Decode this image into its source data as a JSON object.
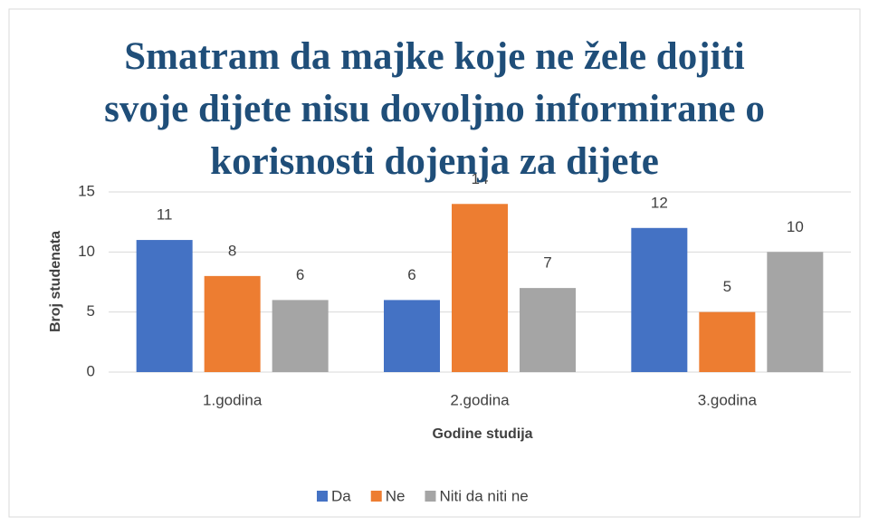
{
  "chart_data": {
    "type": "bar",
    "title": "Smatram da majke koje ne žele dojiti svoje dijete nisu dovoljno informirane o korisnosti dojenja za dijete",
    "x_label": "Godine studija",
    "y_label": "Broj studenata",
    "categories": [
      "1.godina",
      "2.godina",
      "3.godina"
    ],
    "series": [
      {
        "name": "Da",
        "color": "#4472c4",
        "values": [
          11,
          6,
          12
        ]
      },
      {
        "name": "Ne",
        "color": "#ed7d31",
        "values": [
          8,
          14,
          5
        ]
      },
      {
        "name": "Niti da niti ne",
        "color": "#a5a5a5",
        "values": [
          6,
          7,
          10
        ]
      }
    ],
    "ylim": [
      0,
      15
    ],
    "yticks": [
      0,
      5,
      10,
      15
    ],
    "grid": true,
    "legend": "bottom"
  }
}
